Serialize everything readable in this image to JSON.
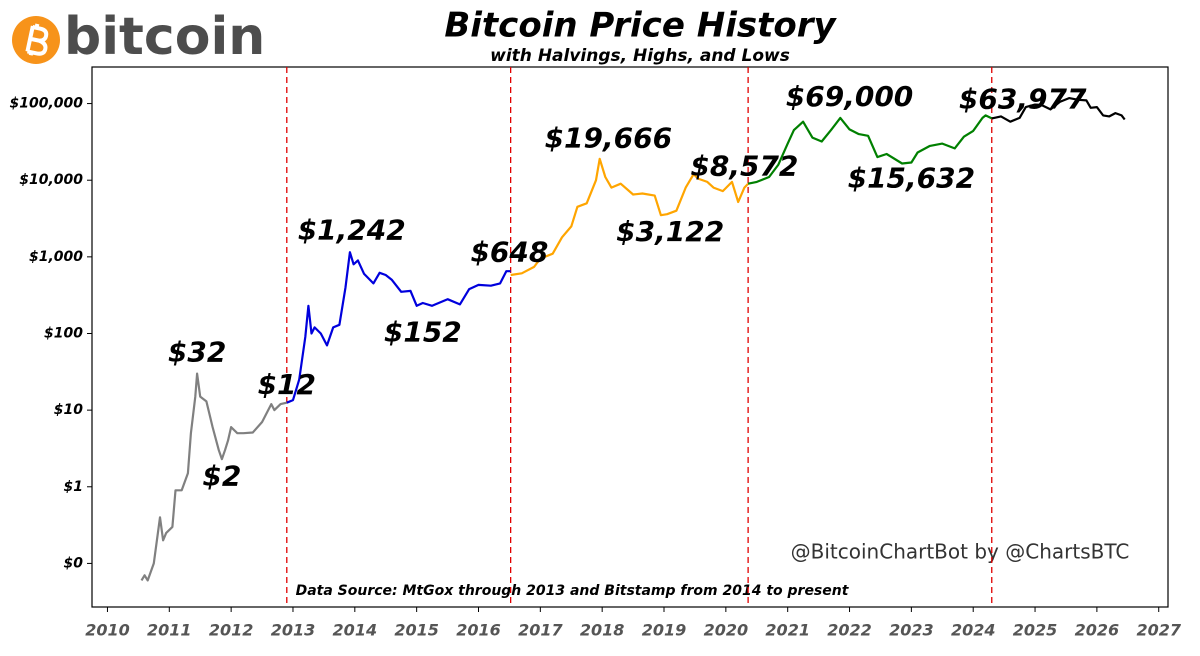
{
  "logo": "bitcoin",
  "watermark": "@BitcoinChartBot by @ChartsBTC",
  "source": "Data Source: MtGox through 2013 and Bitstamp from 2014 to present",
  "chart_data": {
    "type": "line",
    "title": "Bitcoin Price History",
    "subtitle": "with Halvings, Highs, and Lows",
    "log_y": true,
    "grid": false,
    "xlim": [
      2009.75,
      2027.15
    ],
    "ylim": [
      0.027,
      300000
    ],
    "xticks": [
      2010,
      2011,
      2012,
      2013,
      2014,
      2015,
      2016,
      2017,
      2018,
      2019,
      2020,
      2021,
      2022,
      2023,
      2024,
      2025,
      2026,
      2027
    ],
    "yticks": [
      {
        "value": 0.1,
        "label": "$0"
      },
      {
        "value": 1,
        "label": "$1"
      },
      {
        "value": 10,
        "label": "$10"
      },
      {
        "value": 100,
        "label": "$100"
      },
      {
        "value": 1000,
        "label": "$1,000"
      },
      {
        "value": 10000,
        "label": "$10,000"
      },
      {
        "value": 100000,
        "label": "$100,000"
      }
    ],
    "halvings": [
      2012.9,
      2016.52,
      2020.36,
      2024.3
    ],
    "halving_color": "#e00000",
    "series": [
      {
        "color": "#808080",
        "x": [
          2010.55,
          2010.6,
          2010.65,
          2010.75,
          2010.85,
          2010.9,
          2010.95,
          2011.05,
          2011.1,
          2011.2,
          2011.3,
          2011.35,
          2011.42,
          2011.45,
          2011.5,
          2011.6,
          2011.7,
          2011.8,
          2011.85,
          2011.9,
          2011.95,
          2012.0,
          2012.1,
          2012.2,
          2012.35,
          2012.5,
          2012.6,
          2012.65,
          2012.7,
          2012.8,
          2012.9
        ],
        "values": [
          0.06,
          0.07,
          0.06,
          0.1,
          0.4,
          0.2,
          0.25,
          0.3,
          0.9,
          0.9,
          1.5,
          5,
          15,
          30,
          15,
          13,
          6,
          3,
          2.3,
          3,
          4,
          6,
          5,
          5,
          5.1,
          7,
          10,
          12,
          10,
          12,
          12.5
        ]
      },
      {
        "color": "#0000dd",
        "x": [
          2012.9,
          2013.0,
          2013.1,
          2013.2,
          2013.25,
          2013.3,
          2013.35,
          2013.45,
          2013.55,
          2013.65,
          2013.75,
          2013.85,
          2013.92,
          2013.98,
          2014.05,
          2014.15,
          2014.3,
          2014.4,
          2014.5,
          2014.6,
          2014.75,
          2014.9,
          2015.0,
          2015.1,
          2015.25,
          2015.5,
          2015.7,
          2015.85,
          2016.0,
          2016.2,
          2016.35,
          2016.45,
          2016.52
        ],
        "values": [
          12.5,
          13.5,
          25,
          90,
          230,
          100,
          120,
          100,
          70,
          120,
          130,
          400,
          1150,
          800,
          900,
          600,
          450,
          620,
          580,
          500,
          350,
          360,
          230,
          250,
          230,
          280,
          240,
          380,
          430,
          420,
          450,
          650,
          650
        ]
      },
      {
        "color": "#ffa500",
        "x": [
          2016.52,
          2016.7,
          2016.9,
          2017.0,
          2017.2,
          2017.35,
          2017.5,
          2017.6,
          2017.75,
          2017.9,
          2017.96,
          2018.05,
          2018.15,
          2018.3,
          2018.5,
          2018.65,
          2018.85,
          2018.95,
          2019.05,
          2019.2,
          2019.35,
          2019.48,
          2019.55,
          2019.7,
          2019.8,
          2019.95,
          2020.1,
          2020.2,
          2020.3,
          2020.36
        ],
        "values": [
          580,
          610,
          740,
          950,
          1100,
          1800,
          2500,
          4500,
          5000,
          10000,
          19000,
          11000,
          8000,
          9000,
          6500,
          6700,
          6300,
          3500,
          3600,
          4000,
          8000,
          12000,
          10500,
          9500,
          8000,
          7200,
          9500,
          5200,
          8000,
          9000
        ]
      },
      {
        "color": "#008000",
        "x": [
          2020.36,
          2020.5,
          2020.7,
          2020.85,
          2021.0,
          2021.1,
          2021.25,
          2021.4,
          2021.55,
          2021.7,
          2021.85,
          2022.0,
          2022.15,
          2022.3,
          2022.45,
          2022.6,
          2022.85,
          2023.0,
          2023.1,
          2023.3,
          2023.5,
          2023.7,
          2023.85,
          2024.0,
          2024.15,
          2024.2,
          2024.3
        ],
        "values": [
          9000,
          9500,
          11000,
          16000,
          30000,
          45000,
          58000,
          36000,
          32000,
          45000,
          65000,
          46000,
          40000,
          38000,
          20000,
          22000,
          16500,
          17000,
          23000,
          28000,
          30000,
          26000,
          37000,
          44000,
          65000,
          70000,
          64000
        ]
      },
      {
        "color": "#000000",
        "x": [
          2024.3,
          2024.45,
          2024.6,
          2024.75,
          2024.85,
          2025.0,
          2025.1,
          2025.25,
          2025.4,
          2025.55,
          2025.7,
          2025.83,
          2025.9,
          2026.0,
          2026.1,
          2026.2,
          2026.3,
          2026.4,
          2026.45
        ],
        "values": [
          64000,
          68000,
          58000,
          65000,
          90000,
          97000,
          96000,
          84000,
          105000,
          118000,
          112000,
          110000,
          88000,
          90000,
          70000,
          68000,
          75000,
          70000,
          62000
        ]
      }
    ],
    "annotations": [
      {
        "text": "$32",
        "x": 2011.45,
        "y": 32,
        "position": "above"
      },
      {
        "text": "$2",
        "x": 2011.85,
        "y": 2,
        "position": "below"
      },
      {
        "text": "$12",
        "x": 2012.9,
        "y": 12,
        "position": "above"
      },
      {
        "text": "$1,242",
        "x": 2013.95,
        "y": 1242,
        "position": "above"
      },
      {
        "text": "$152",
        "x": 2015.1,
        "y": 152,
        "position": "below"
      },
      {
        "text": "$648",
        "x": 2016.5,
        "y": 648,
        "position": "above"
      },
      {
        "text": "$19,666",
        "x": 2018.1,
        "y": 19666,
        "position": "above"
      },
      {
        "text": "$3,122",
        "x": 2019.1,
        "y": 3122,
        "position": "below"
      },
      {
        "text": "$8,572",
        "x": 2020.3,
        "y": 8572,
        "position": "above"
      },
      {
        "text": "$69,000",
        "x": 2022.0,
        "y": 69000,
        "position": "above"
      },
      {
        "text": "$15,632",
        "x": 2023.0,
        "y": 15632,
        "position": "below"
      },
      {
        "text": "$63,977",
        "x": 2024.8,
        "y": 63977,
        "position": "above"
      }
    ]
  }
}
